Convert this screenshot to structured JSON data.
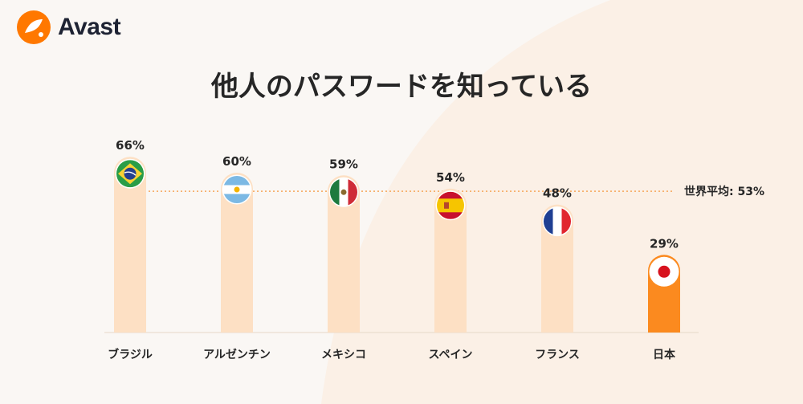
{
  "brand": {
    "name": "Avast",
    "accent": "#ff7800"
  },
  "title": "他人のパスワードを知っている",
  "chart_data": {
    "type": "bar",
    "title": "他人のパスワードを知っている",
    "xlabel": "",
    "ylabel": "",
    "ylim": [
      0,
      70
    ],
    "grid": false,
    "categories": [
      "ブラジル",
      "アルゼンチン",
      "メキシコ",
      "スペイン",
      "フランス",
      "日本"
    ],
    "values": [
      66,
      60,
      59,
      54,
      48,
      29
    ],
    "value_labels": [
      "66%",
      "60%",
      "59%",
      "54%",
      "48%",
      "29%"
    ],
    "flag_icons": [
      "brazil-flag-icon",
      "argentina-flag-icon",
      "mexico-flag-icon",
      "spain-flag-icon",
      "france-flag-icon",
      "japan-flag-icon"
    ],
    "highlight_category": "日本",
    "reference_line": {
      "label": "世界平均: 53%",
      "value": 53
    },
    "colors": {
      "bar": "#fde0c4",
      "highlight_bar": "#fb8a1f",
      "reference_line": "#f5a65b"
    }
  }
}
